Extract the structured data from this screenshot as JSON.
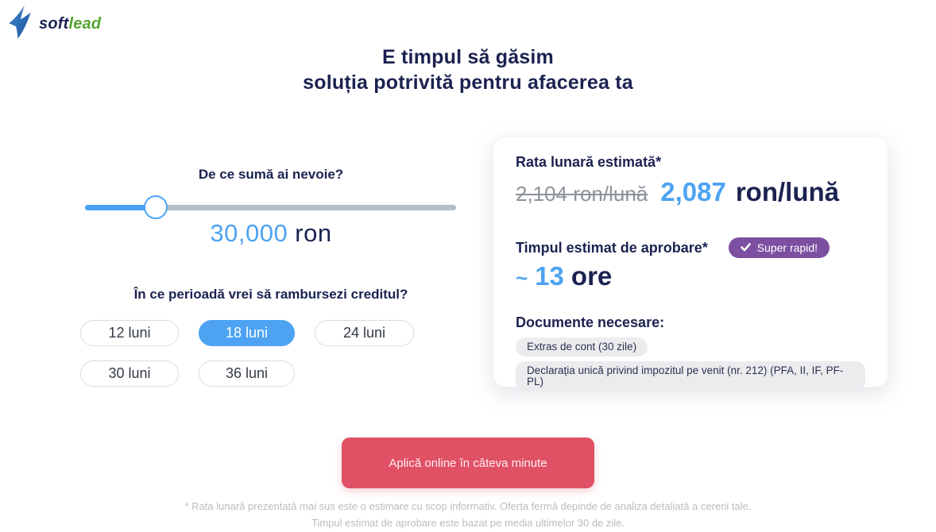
{
  "brand": {
    "name_part1": "soft",
    "name_part2": "lead"
  },
  "header": {
    "title_line1": "E timpul să găsim",
    "title_line2": "soluția potrivită pentru afacerea ta"
  },
  "loan": {
    "amount_question": "De ce sumă ai nevoie?",
    "amount_value": "30,000",
    "amount_currency": "ron",
    "slider_percent": 19,
    "period_question": "În ce perioadă vrei să rambursezi creditul?",
    "period_options": [
      {
        "label": "12 luni",
        "selected": false
      },
      {
        "label": "18 luni",
        "selected": true
      },
      {
        "label": "24 luni",
        "selected": false
      },
      {
        "label": "30 luni",
        "selected": false
      },
      {
        "label": "36 luni",
        "selected": false
      }
    ]
  },
  "estimate": {
    "rate_title": "Rata lunară estimată*",
    "rate_old": "2,104 ron/lună",
    "rate_new_value": "2,087",
    "rate_new_unit": "ron/lună",
    "approval_title": "Timpul estimat de aprobare*",
    "approval_badge": "Super rapid!",
    "approval_prefix": "~",
    "approval_value": "13",
    "approval_unit": "ore",
    "documents_title": "Documente necesare:",
    "documents": [
      "Extras de cont (30 zile)",
      "Declarația unică privind impozitul pe venit (nr. 212) (PFA, II, IF, PF-PL)"
    ]
  },
  "cta": {
    "label": "Aplică online în câteva minute"
  },
  "footer": {
    "line1": "* Rata lunară prezentată mai sus este o estimare cu scop informativ. Oferta fermă depinde de analiza detaliată a cererii tale.",
    "line2": "Timpul estimat de aprobare este bazat pe media ultimelor 30 de zile."
  },
  "colors": {
    "accent_blue": "#4da3f2",
    "navy": "#1b2250",
    "badge_purple": "#7d4fa1",
    "cta_red": "#e05165",
    "brand_green": "#56a531",
    "muted_gray": "#8d939b",
    "track_gray": "#b3bec6",
    "chip_bg": "#ececef",
    "footer_gray": "#b9bdc1"
  }
}
